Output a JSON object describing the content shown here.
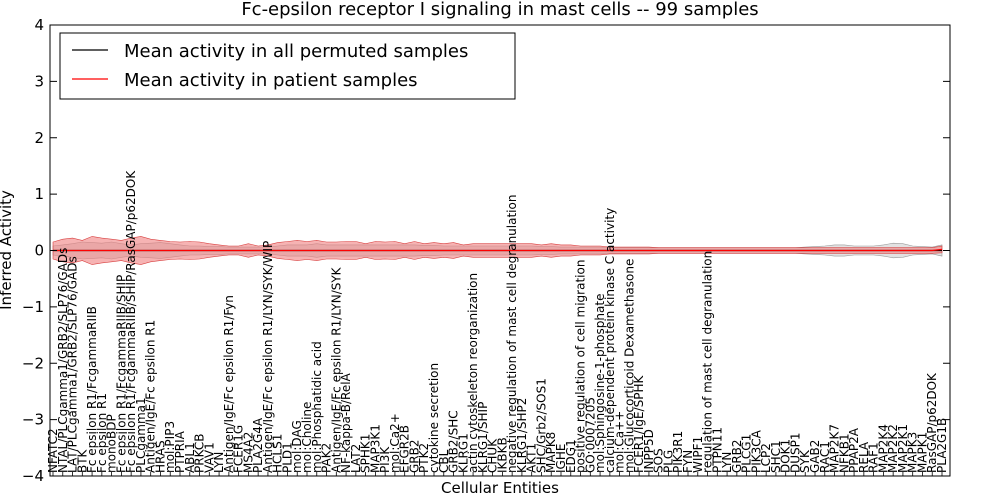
{
  "chart_data": {
    "type": "line",
    "title": "Fc-epsilon receptor I signaling in mast cells -- 99 samples",
    "xlabel": "Cellular Entities",
    "ylabel": "Inferred Activity",
    "ylim": [
      -4,
      4
    ],
    "yticks": [
      "4",
      "3",
      "2",
      "1",
      "0",
      "−1",
      "−2",
      "−3",
      "−4"
    ],
    "legend": {
      "placement": "top-left",
      "entries": [
        "Mean activity in all permuted samples",
        "Mean activity in patient samples"
      ]
    },
    "colors": {
      "permuted": "#000000",
      "patient": "#ff0000",
      "patient_band": "#f08080",
      "permuted_band": "#bfbfbf"
    },
    "categories": [
      "NFATC2",
      "NTAL/PLCgamma1/GRB2/SLP76/GADs",
      "LAT/PLCgamma1/GRB2/SLP76/GADs",
      "BTK",
      "Fc epsilon R1/FcgammaRIIB",
      "Fc epsilon R1",
      "monoBDP",
      "Fc epsilon R1/FcgammaRIIB/SHIP",
      "Fc epsilon R1/FcgammaRIIB/SHIP/RasGAP/p62DOK",
      "PLCgamma1",
      "Antigen/IgE/Fc epsilon R1",
      "HRAS",
      "mol:PIP3",
      "PTPRIA",
      "ABL1",
      "PRKCB",
      "VAV1",
      "LYN",
      "Antigen/IgE/Fc epsilon R1/Fyn",
      "FCER1G",
      "MS4A2",
      "PLA2G4A",
      "Antigen/IgE/Fc epsilon R1/LYN/SYK/WIP",
      "HCLS1",
      "PLD1",
      "mol:DAG",
      "mol:Choline",
      "mol:Phosphatidic acid",
      "PAK2",
      "Antigen/IgE/Fc epsilon R1/LYN/SYK",
      "NF-kappa-B/RelA",
      "LAT2",
      "SPHK1",
      "MAP3K1",
      "PI3K",
      "mol:Ca2+",
      "EFGR2B",
      "GRB2",
      "PTK2",
      "cytokine secretion",
      "CBL",
      "GRB2/SHC",
      "KLRG1",
      "actin cytoskeleton reorganization",
      "KLRG1/SHIP",
      "CHUK",
      "IKBKB",
      "negative regulation of mast cell degranulation",
      "KLRG1/SHP2",
      "AKT1",
      "SHC/Grb2/SOS1",
      "MAPK8",
      "IGHE",
      "EDG1",
      "positive regulation of cell migration",
      "GO:0007205",
      "mol:Sphingosine-1-phosphate",
      "calcium-dependent protein kinase C activity",
      "mol:Ca++",
      "mol:Glucocorticoid Dexamethasone",
      "FCER1/IgE/SPHK",
      "INPP5D",
      "SOS",
      "PLG",
      "PIK3R1",
      "FYN",
      "WIPF1",
      "regulation of mast cell degranulation",
      "PTPN11",
      "LYN",
      "GRB2",
      "PLCG1",
      "PIK3CA",
      "LCP2",
      "SHC1",
      "DOK1",
      "DUSP1",
      "SYK",
      "GAB2",
      "RAC1",
      "MAP2K7",
      "NFKB1",
      "PPAP2A",
      "RELA",
      "RAF1",
      "MAP2K4",
      "MAP2K2",
      "MAP2K1",
      "MAPK3",
      "MAPK1",
      "RasGAP/p62DOK",
      "PLA2G1B"
    ],
    "series": [
      {
        "name": "Mean activity in all permuted samples",
        "values": [
          0,
          0,
          0,
          0,
          0,
          0,
          0,
          0,
          0,
          0,
          0,
          0,
          0,
          0,
          0,
          0,
          0,
          0,
          0,
          0,
          0,
          0,
          0,
          0,
          0,
          0,
          0,
          0,
          0,
          0,
          0,
          0,
          0,
          0,
          0,
          0,
          0,
          0,
          0,
          0,
          0,
          0,
          0,
          0,
          0,
          0,
          0,
          0,
          0,
          0,
          0,
          0,
          0,
          0,
          0,
          0,
          0,
          0,
          0,
          0,
          0,
          0,
          0,
          0,
          0,
          0,
          0,
          0,
          0,
          0,
          0,
          0,
          0,
          0,
          0,
          0,
          0,
          0,
          0,
          0,
          0,
          0,
          0,
          0,
          0,
          0,
          0,
          0,
          0,
          0,
          0,
          0
        ],
        "band": [
          0.08,
          0.1,
          0.12,
          0.15,
          0.14,
          0.13,
          0.15,
          0.12,
          0.1,
          0.12,
          0.13,
          0.14,
          0.12,
          0.1,
          0.08,
          0.08,
          0.07,
          0.07,
          0.06,
          0.06,
          0.06,
          0.06,
          0.06,
          0.08,
          0.1,
          0.1,
          0.1,
          0.12,
          0.1,
          0.1,
          0.1,
          0.1,
          0.1,
          0.1,
          0.1,
          0.1,
          0.1,
          0.1,
          0.09,
          0.09,
          0.08,
          0.08,
          0.08,
          0.08,
          0.08,
          0.08,
          0.08,
          0.08,
          0.08,
          0.08,
          0.07,
          0.07,
          0.06,
          0.06,
          0.06,
          0.06,
          0.06,
          0.05,
          0.05,
          0.05,
          0.05,
          0.05,
          0.05,
          0.05,
          0.05,
          0.05,
          0.05,
          0.05,
          0.05,
          0.05,
          0.05,
          0.05,
          0.05,
          0.05,
          0.05,
          0.05,
          0.05,
          0.06,
          0.07,
          0.08,
          0.1,
          0.1,
          0.08,
          0.08,
          0.08,
          0.1,
          0.13,
          0.12,
          0.08,
          0.07,
          0.06,
          0.1
        ]
      },
      {
        "name": "Mean activity in patient samples",
        "values": [
          0,
          0,
          0,
          0,
          0,
          0,
          0,
          0,
          0,
          0,
          0,
          0,
          0,
          0,
          0,
          0,
          0,
          0,
          0,
          0,
          0,
          0,
          0,
          0,
          0,
          0,
          0,
          0,
          0,
          0,
          0,
          0,
          0,
          0,
          0,
          0,
          0,
          0,
          0,
          0,
          0,
          0,
          0,
          0,
          0,
          0,
          0,
          0,
          0,
          0,
          0,
          0,
          0,
          0,
          0,
          0,
          0,
          0,
          0,
          0,
          0,
          0,
          0,
          0,
          0,
          0,
          0,
          0,
          0,
          0,
          0,
          0,
          0,
          0,
          0,
          0,
          0,
          0,
          0,
          0,
          0,
          0,
          0,
          0,
          0,
          0,
          0,
          0,
          0,
          0,
          0,
          0.02
        ],
        "band": [
          0.15,
          0.2,
          0.22,
          0.18,
          0.25,
          0.22,
          0.2,
          0.18,
          0.22,
          0.25,
          0.2,
          0.18,
          0.16,
          0.15,
          0.16,
          0.15,
          0.12,
          0.1,
          0.08,
          0.08,
          0.12,
          0.08,
          0.1,
          0.14,
          0.16,
          0.18,
          0.16,
          0.18,
          0.15,
          0.15,
          0.16,
          0.16,
          0.12,
          0.16,
          0.15,
          0.16,
          0.12,
          0.16,
          0.12,
          0.14,
          0.12,
          0.14,
          0.1,
          0.12,
          0.12,
          0.12,
          0.12,
          0.12,
          0.12,
          0.12,
          0.1,
          0.12,
          0.1,
          0.1,
          0.08,
          0.08,
          0.08,
          0.06,
          0.06,
          0.06,
          0.06,
          0.06,
          0.05,
          0.05,
          0.05,
          0.05,
          0.05,
          0.05,
          0.05,
          0.05,
          0.05,
          0.05,
          0.05,
          0.05,
          0.05,
          0.05,
          0.05,
          0.05,
          0.05,
          0.05,
          0.05,
          0.05,
          0.05,
          0.05,
          0.05,
          0.05,
          0.05,
          0.05,
          0.05,
          0.05,
          0.05,
          0.06
        ]
      }
    ]
  }
}
